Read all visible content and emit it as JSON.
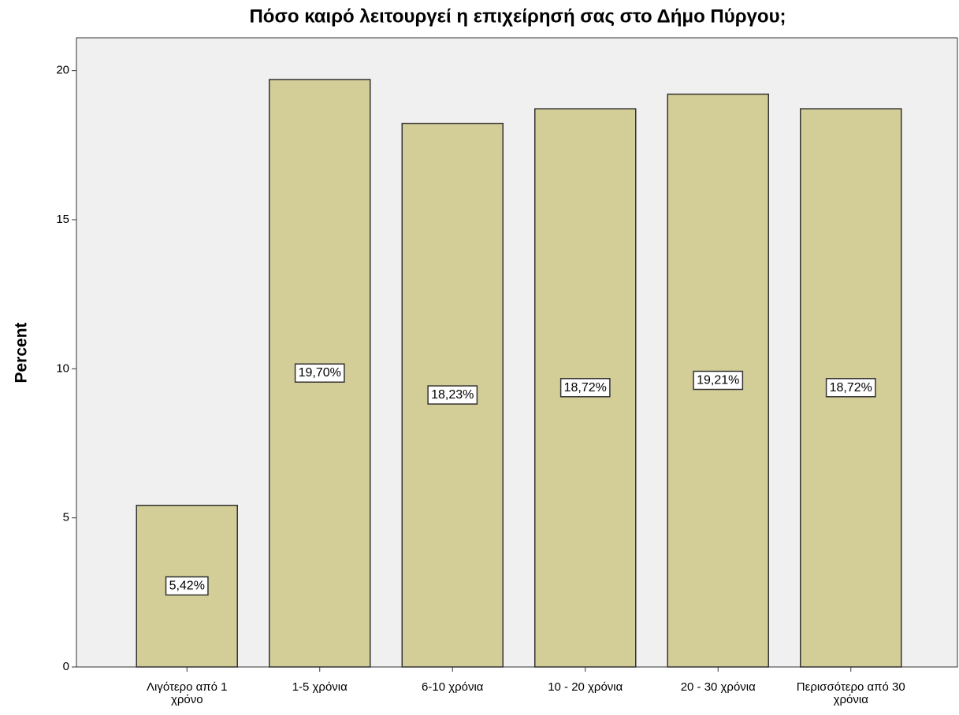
{
  "chart_data": {
    "type": "bar",
    "title": "Πόσο καιρό λειτουργεί η επιχείρησή σας στο Δήμο Πύργου;",
    "y_label": "Percent",
    "categories": [
      "Λιγότερο από 1 χρόνο",
      "1-5 χρόνια",
      "6-10 χρόνια",
      "10 - 20 χρόνια",
      "20 - 30 χρόνια",
      "Περισσότερο από 30 χρόνια"
    ],
    "values": [
      5.42,
      19.7,
      18.23,
      18.72,
      19.21,
      18.72
    ],
    "value_labels": [
      "5,42%",
      "19,70%",
      "18,23%",
      "18,72%",
      "19,21%",
      "18,72%"
    ],
    "color": "#d3ce97",
    "ylim": [
      0,
      21.1
    ],
    "yticks": [
      0,
      5,
      10,
      15,
      20
    ]
  }
}
